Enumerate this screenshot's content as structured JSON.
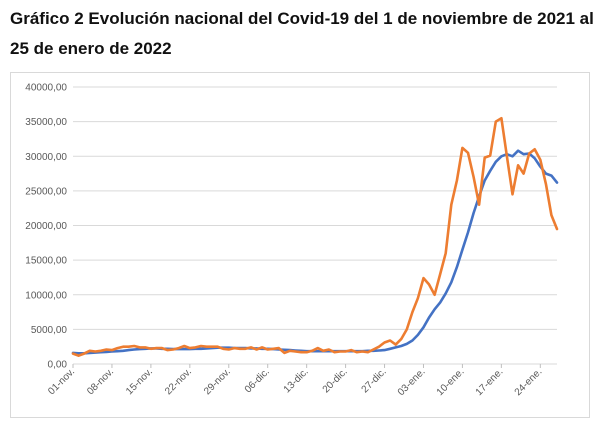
{
  "title": "Gráfico 2 Evolución nacional del Covid-19 del 1 de noviembre de 2021 al 25 de enero de 2022",
  "chart_data": {
    "type": "line",
    "title": "Gráfico 2 Evolución nacional del Covid-19 del 1 de noviembre de 2021 al 25 de enero de 2022",
    "xlabel": "",
    "ylabel": "",
    "ylim": [
      0,
      40000
    ],
    "yticks": [
      "0,00",
      "5000,00",
      "10000,00",
      "15000,00",
      "20000,00",
      "25000,00",
      "30000,00",
      "35000,00",
      "40000,00"
    ],
    "ytick_values": [
      0,
      5000,
      10000,
      15000,
      20000,
      25000,
      30000,
      35000,
      40000
    ],
    "grid": true,
    "legend": "none",
    "x_start": "2021-11-01",
    "x_end": "2022-01-25",
    "xtick_labels": [
      "01-nov.",
      "08-nov.",
      "15-nov.",
      "22-nov.",
      "29-nov.",
      "06-dic.",
      "13-dic.",
      "20-dic.",
      "27-dic.",
      "03-ene.",
      "10-ene.",
      "17-ene.",
      "24-ene."
    ],
    "series": [
      {
        "color": "#4472c4",
        "values": [
          1600,
          1550,
          1550,
          1600,
          1650,
          1700,
          1750,
          1800,
          1850,
          1900,
          2000,
          2100,
          2150,
          2200,
          2250,
          2250,
          2200,
          2200,
          2150,
          2150,
          2150,
          2150,
          2200,
          2200,
          2250,
          2300,
          2350,
          2350,
          2350,
          2300,
          2300,
          2300,
          2250,
          2250,
          2200,
          2200,
          2150,
          2100,
          2050,
          2000,
          1950,
          1900,
          1850,
          1850,
          1850,
          1850,
          1850,
          1850,
          1850,
          1850,
          1850,
          1850,
          1850,
          1900,
          1900,
          1950,
          2000,
          2200,
          2400,
          2600,
          2900,
          3400,
          4200,
          5300,
          6700,
          7900,
          8900,
          10200,
          11800,
          14000,
          16500,
          19000,
          21800,
          24200,
          26500,
          27900,
          29200,
          30000,
          30300,
          30000,
          30800,
          30300,
          30400,
          29700,
          28500,
          27500,
          27200,
          26200
        ]
      },
      {
        "color": "#ed7d31",
        "values": [
          1500,
          1200,
          1500,
          1900,
          1800,
          1900,
          2100,
          2000,
          2300,
          2500,
          2500,
          2600,
          2400,
          2400,
          2200,
          2300,
          2300,
          2000,
          2100,
          2300,
          2600,
          2300,
          2400,
          2600,
          2500,
          2500,
          2500,
          2200,
          2100,
          2300,
          2200,
          2200,
          2400,
          2100,
          2400,
          2100,
          2200,
          2300,
          1600,
          1900,
          1800,
          1700,
          1700,
          1900,
          2300,
          1900,
          2100,
          1700,
          1800,
          1800,
          2000,
          1700,
          1800,
          1700,
          2100,
          2500,
          3100,
          3400,
          2800,
          3600,
          5000,
          7500,
          9500,
          12400,
          11500,
          10000,
          13000,
          16000,
          23000,
          26500,
          31200,
          30500,
          27000,
          23000,
          29800,
          30100,
          35000,
          35500,
          30000,
          24500,
          28700,
          27500,
          30400,
          31000,
          29500,
          26000,
          21500,
          19500
        ]
      }
    ]
  }
}
